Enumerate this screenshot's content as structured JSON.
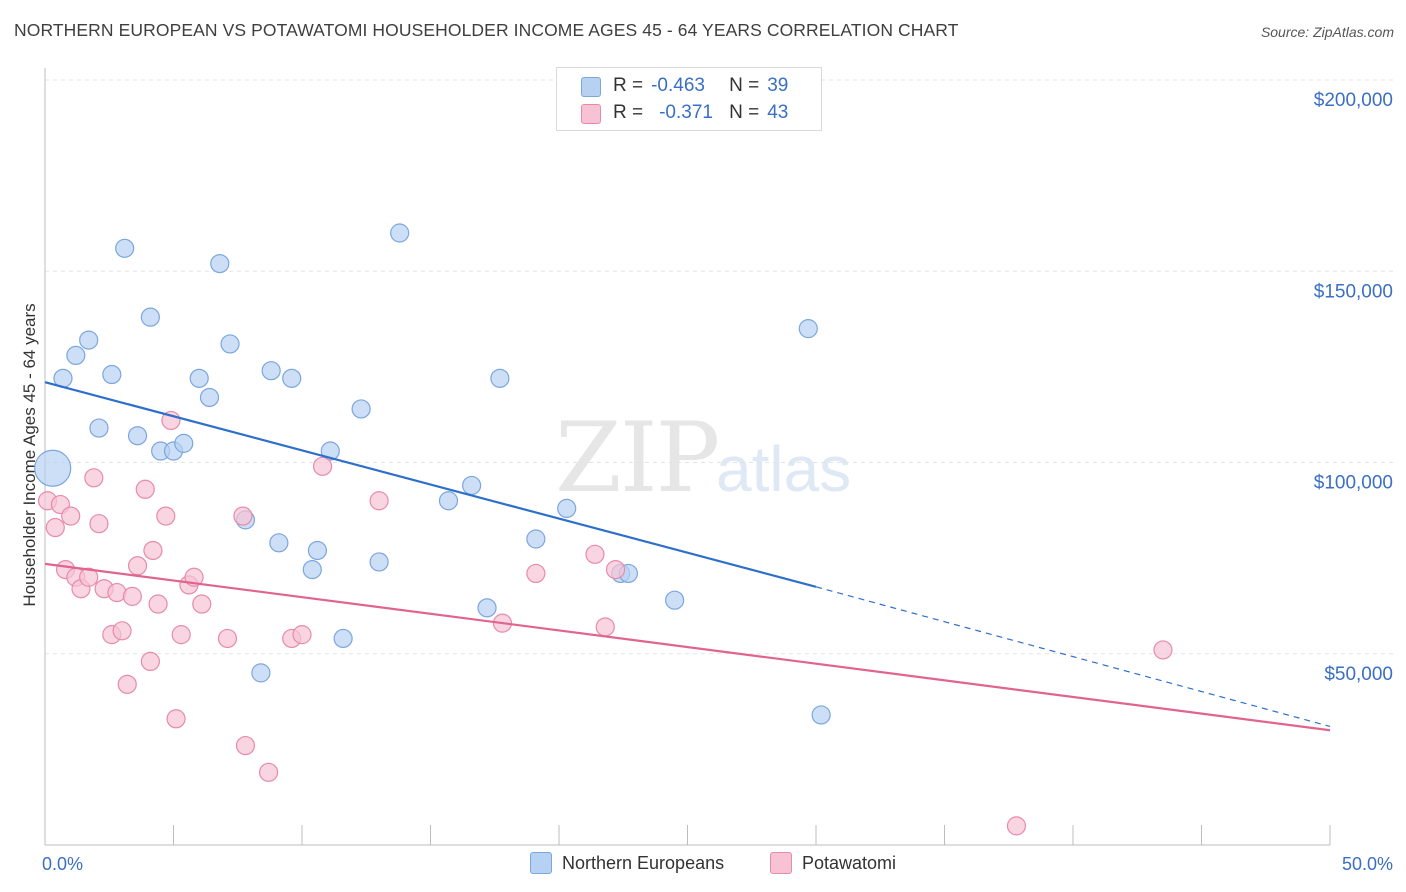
{
  "title": "NORTHERN EUROPEAN VS POTAWATOMI HOUSEHOLDER INCOME AGES 45 - 64 YEARS CORRELATION CHART",
  "source": "Source: ZipAtlas.com",
  "watermark": {
    "zip": "ZIP",
    "atlas": "atlas"
  },
  "legend": {
    "r_label": "R =",
    "n_label": "N =",
    "blue": {
      "r": "-0.463",
      "n": "39"
    },
    "pink": {
      "r": "-0.371",
      "n": "43"
    }
  },
  "colors": {
    "blue_fill": "#b7d1f2",
    "blue_stroke": "#7ca6de",
    "blue_line": "#2e6fcc",
    "pink_fill": "#f7c3d4",
    "pink_stroke": "#e88aab",
    "pink_line": "#e0648f",
    "grid": "#e3e3e3",
    "axis_label": "#3a6fc4"
  },
  "chart_data": {
    "type": "scatter",
    "title": "NORTHERN EUROPEAN VS POTAWATOMI HOUSEHOLDER INCOME AGES 45 - 64 YEARS CORRELATION CHART",
    "xlabel": "",
    "ylabel": "Householder Income Ages 45 - 64 years",
    "xlim": [
      0,
      50
    ],
    "ylim": [
      0,
      205000
    ],
    "x_tick_labels": [
      "0.0%",
      "50.0%"
    ],
    "y_ticks": [
      50000,
      100000,
      150000,
      200000
    ],
    "y_tick_labels": [
      "$50,000",
      "$100,000",
      "$150,000",
      "$200,000"
    ],
    "grid": true,
    "legend": "bottom-center",
    "series": [
      {
        "name": "Northern Europeans",
        "color": "#b7d1f2",
        "points": [
          {
            "x": 0.3,
            "y": 98500,
            "big": true
          },
          {
            "x": 0.7,
            "y": 122000
          },
          {
            "x": 1.2,
            "y": 128000
          },
          {
            "x": 1.7,
            "y": 132000
          },
          {
            "x": 2.1,
            "y": 109000
          },
          {
            "x": 2.6,
            "y": 123000
          },
          {
            "x": 3.1,
            "y": 156000
          },
          {
            "x": 3.6,
            "y": 107000
          },
          {
            "x": 4.1,
            "y": 138000
          },
          {
            "x": 4.5,
            "y": 103000
          },
          {
            "x": 5.0,
            "y": 103000
          },
          {
            "x": 5.4,
            "y": 105000
          },
          {
            "x": 6.0,
            "y": 122000
          },
          {
            "x": 6.4,
            "y": 117000
          },
          {
            "x": 6.8,
            "y": 152000
          },
          {
            "x": 7.2,
            "y": 131000
          },
          {
            "x": 7.8,
            "y": 85000
          },
          {
            "x": 8.4,
            "y": 45000
          },
          {
            "x": 8.8,
            "y": 124000
          },
          {
            "x": 9.1,
            "y": 79000
          },
          {
            "x": 9.6,
            "y": 122000
          },
          {
            "x": 10.4,
            "y": 72000
          },
          {
            "x": 10.6,
            "y": 77000
          },
          {
            "x": 11.1,
            "y": 103000
          },
          {
            "x": 11.6,
            "y": 54000
          },
          {
            "x": 12.3,
            "y": 114000
          },
          {
            "x": 13.0,
            "y": 74000
          },
          {
            "x": 13.8,
            "y": 160000
          },
          {
            "x": 15.7,
            "y": 90000
          },
          {
            "x": 16.6,
            "y": 94000
          },
          {
            "x": 17.2,
            "y": 62000
          },
          {
            "x": 17.7,
            "y": 122000
          },
          {
            "x": 19.1,
            "y": 80000
          },
          {
            "x": 20.3,
            "y": 88000
          },
          {
            "x": 22.4,
            "y": 71000
          },
          {
            "x": 22.7,
            "y": 71000
          },
          {
            "x": 24.5,
            "y": 64000
          },
          {
            "x": 29.7,
            "y": 135000
          },
          {
            "x": 30.2,
            "y": 34000
          }
        ],
        "trend": {
          "x1": 0,
          "y1": 121000,
          "x2": 30,
          "y2": 67500,
          "dash_to_x": 50,
          "dash_to_y": 31000
        }
      },
      {
        "name": "Potawatomi",
        "color": "#f7c3d4",
        "points": [
          {
            "x": 0.1,
            "y": 90000
          },
          {
            "x": 0.4,
            "y": 83000
          },
          {
            "x": 0.6,
            "y": 89000
          },
          {
            "x": 0.8,
            "y": 72000
          },
          {
            "x": 1.0,
            "y": 86000
          },
          {
            "x": 1.2,
            "y": 70000
          },
          {
            "x": 1.4,
            "y": 67000
          },
          {
            "x": 1.7,
            "y": 70000
          },
          {
            "x": 1.9,
            "y": 96000
          },
          {
            "x": 2.1,
            "y": 84000
          },
          {
            "x": 2.3,
            "y": 67000
          },
          {
            "x": 2.6,
            "y": 55000
          },
          {
            "x": 2.8,
            "y": 66000
          },
          {
            "x": 3.0,
            "y": 56000
          },
          {
            "x": 3.2,
            "y": 42000
          },
          {
            "x": 3.4,
            "y": 65000
          },
          {
            "x": 3.6,
            "y": 73000
          },
          {
            "x": 3.9,
            "y": 93000
          },
          {
            "x": 4.1,
            "y": 48000
          },
          {
            "x": 4.2,
            "y": 77000
          },
          {
            "x": 4.4,
            "y": 63000
          },
          {
            "x": 4.7,
            "y": 86000
          },
          {
            "x": 4.9,
            "y": 111000
          },
          {
            "x": 5.1,
            "y": 33000
          },
          {
            "x": 5.3,
            "y": 55000
          },
          {
            "x": 5.6,
            "y": 68000
          },
          {
            "x": 5.8,
            "y": 70000
          },
          {
            "x": 6.1,
            "y": 63000
          },
          {
            "x": 7.1,
            "y": 54000
          },
          {
            "x": 7.7,
            "y": 86000
          },
          {
            "x": 7.8,
            "y": 26000
          },
          {
            "x": 8.7,
            "y": 19000
          },
          {
            "x": 9.6,
            "y": 54000
          },
          {
            "x": 10.0,
            "y": 55000
          },
          {
            "x": 10.8,
            "y": 99000
          },
          {
            "x": 13.0,
            "y": 90000
          },
          {
            "x": 17.8,
            "y": 58000
          },
          {
            "x": 19.1,
            "y": 71000
          },
          {
            "x": 21.4,
            "y": 76000
          },
          {
            "x": 21.8,
            "y": 57000
          },
          {
            "x": 22.2,
            "y": 72000
          },
          {
            "x": 37.8,
            "y": 5000
          },
          {
            "x": 43.5,
            "y": 51000
          }
        ],
        "trend": {
          "x1": 0,
          "y1": 73500,
          "x2": 50,
          "y2": 30000
        }
      }
    ]
  }
}
